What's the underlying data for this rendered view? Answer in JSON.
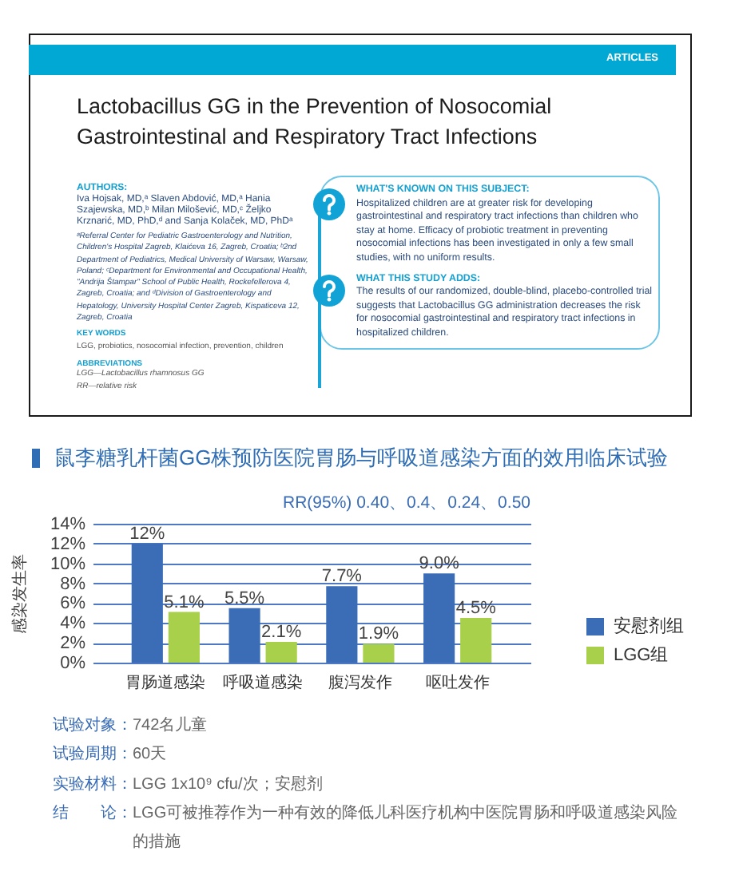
{
  "chart_data": {
    "type": "bar",
    "title": "鼠李糖乳杆菌GG株预防医院胃肠与呼吸道感染方面的效用临床试验",
    "subtitle": "RR(95%) 0.40、0.4、0.24、0.50",
    "ylabel": "感染发生率",
    "categories": [
      "胃肠道感染",
      "呼吸道感染",
      "腹泻发作",
      "呕吐发作"
    ],
    "series": [
      {
        "name": "安慰剂组",
        "color": "#3a6db6",
        "values": [
          12,
          5.5,
          7.7,
          9.0
        ],
        "value_labels": [
          "12%",
          "5.5%",
          "7.7%",
          "9.0%"
        ]
      },
      {
        "name": "LGG组",
        "color": "#a8d04b",
        "values": [
          5.1,
          2.1,
          1.9,
          4.5
        ],
        "value_labels": [
          "5.1%",
          "2.1%",
          "1.9%",
          "4.5%"
        ]
      }
    ],
    "ylim": [
      0,
      14
    ],
    "yticks": [
      {
        "value": 0,
        "label": "0%"
      },
      {
        "value": 2,
        "label": "2%"
      },
      {
        "value": 4,
        "label": "4%"
      },
      {
        "value": 6,
        "label": "6%"
      },
      {
        "value": 8,
        "label": "8%"
      },
      {
        "value": 10,
        "label": "10%"
      },
      {
        "value": 12,
        "label": "12%"
      },
      {
        "value": 14,
        "label": "14%"
      }
    ],
    "grid": "y",
    "legend": "right",
    "annotations": [
      "ARTICLES",
      "Lactobacillus GG in the Prevention of Nosocomial Gastrointestinal and Respiratory Tract Infections",
      "AUTHORS:",
      "Iva Hojsak, MD,ᵃ Slaven Abdović, MD,ᵃ Hania Szajewska, MD,ᵇ Milan Milošević, MD,ᶜ Željko Krznarić, MD, PhD,ᵈ and Sanja Kolaček, MD, PhDᵃ",
      "ᵃReferral Center for Pediatric Gastroenterology and Nutrition, Children's Hospital Zagreb, Klaićeva 16, Zagreb, Croatia; ᵇ2nd Department of Pediatrics, Medical University of Warsaw, Warsaw, Poland; ᶜDepartment for Environmental and Occupational Health, \"Andrija Štampar\" School of Public Health, Rockefellerova 4, Zagreb, Croatia; and ᵈDivision of Gastroenterology and Hepatology, University Hospital Center Zagreb, Kispaticeva 12, Zagreb, Croatia",
      "KEY WORDS",
      "LGG, probiotics, nosocomial infection, prevention, children",
      "ABBREVIATIONS",
      "LGG—Lactobacillus rhamnosus GG",
      "RR—relative risk",
      "WHAT'S KNOWN ON THIS SUBJECT:",
      "Hospitalized children are at greater risk for developing gastrointestinal and respiratory tract infections than children who stay at home. Efficacy of probiotic treatment in preventing nosocomial infections has been investigated in only a few small studies, with no uniform results.",
      "WHAT THIS STUDY ADDS:",
      "The results of our randomized, double-blind, placebo-controlled trial suggests that Lactobacillus GG administration decreases the risk for nosocomial gastrointestinal and respiratory tract infections in hospitalized children.",
      "试验对象：",
      "742名儿童",
      "试验周期：",
      "60天",
      "实验材料：",
      "LGG 1x10⁹ cfu/次；安慰剂",
      "结　　论：",
      "LGG可被推荐作为一种有效的降低儿科医疗机构中医院胃肠和呼吸道感染风险的措施"
    ]
  }
}
